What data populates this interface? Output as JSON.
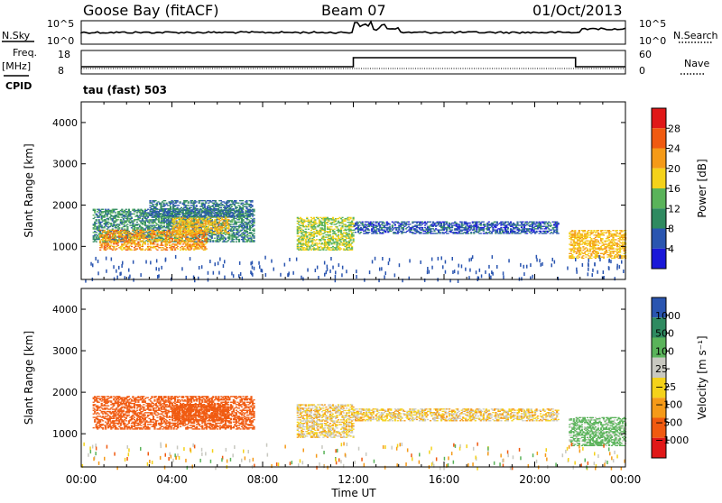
{
  "header": {
    "station": "Goose Bay (fitACF)",
    "beam": "Beam 07",
    "date": "01/Oct/2013"
  },
  "status_panels": {
    "nsky_label": "N.Sky",
    "nsky_top_tick": "10^5",
    "nsky_bottom_tick": "10^0",
    "nsearch_label": "N.Search",
    "nsearch_top_tick": "10^5",
    "nsearch_bottom_tick": "10^0",
    "freq_label": "Freq.",
    "freq_unit": "[MHz]",
    "freq_top_tick": "18",
    "freq_bottom_tick": "8",
    "nave_label": "Nave",
    "nave_top_tick": "60",
    "nave_bottom_tick": "0",
    "cpid_label": "CPID",
    "cpid_text": "tau (fast) 503"
  },
  "colors": {
    "power_scale": [
      "#1a18d8",
      "#2a55b0",
      "#2f8a60",
      "#5ab35a",
      "#f4d21a",
      "#f59a18",
      "#f05a10",
      "#e01818"
    ],
    "velocity_scale": [
      "#e01818",
      "#f05a10",
      "#f59a18",
      "#f4d21a",
      "#c8c8c0",
      "#5ab35a",
      "#2f8a60",
      "#2a55b0"
    ]
  },
  "chart_data": [
    {
      "type": "heatmap",
      "name": "power",
      "ylabel": "Slant Range [km]",
      "xlabel": "Time UT",
      "x_ticks": [
        "00:00",
        "04:00",
        "08:00",
        "12:00",
        "16:00",
        "20:00",
        "00:00"
      ],
      "y_ticks": [
        "1000",
        "2000",
        "3000",
        "4000"
      ],
      "ylim": [
        200,
        4500
      ],
      "colorbar_label": "Power [dB]",
      "colorbar_ticks": [
        "4",
        "8",
        "12",
        "16",
        "20",
        "24",
        "28"
      ],
      "regions": [
        {
          "t0": 0.5,
          "t1": 7.6,
          "r0": 1100,
          "r1": 1900,
          "value": 10
        },
        {
          "t0": 0.8,
          "t1": 5.5,
          "r0": 900,
          "r1": 1400,
          "value": 22
        },
        {
          "t0": 4.0,
          "t1": 6.5,
          "r0": 1300,
          "r1": 1700,
          "value": 20
        },
        {
          "t0": 9.5,
          "t1": 12.0,
          "r0": 900,
          "r1": 1700,
          "value": 16
        },
        {
          "t0": 12.0,
          "t1": 21.0,
          "r0": 1300,
          "r1": 1600,
          "value": 6
        },
        {
          "t0": 21.5,
          "t1": 24.0,
          "r0": 700,
          "r1": 1400,
          "value": 20
        },
        {
          "t0": 3.0,
          "t1": 7.5,
          "r0": 1700,
          "r1": 2100,
          "value": 8
        }
      ]
    },
    {
      "type": "heatmap",
      "name": "velocity",
      "ylabel": "Slant Range [km]",
      "xlabel": "Time UT",
      "x_ticks": [
        "00:00",
        "04:00",
        "08:00",
        "12:00",
        "16:00",
        "20:00",
        "00:00"
      ],
      "y_ticks": [
        "1000",
        "2000",
        "3000",
        "4000"
      ],
      "ylim": [
        200,
        4500
      ],
      "colorbar_label": "Velocity [m s⁻¹]",
      "colorbar_ticks": [
        "1000",
        "500",
        "100",
        "25",
        "−25",
        "−100",
        "−500",
        "−1000"
      ],
      "regions": [
        {
          "t0": 0.5,
          "t1": 7.6,
          "r0": 1100,
          "r1": 1900,
          "value": -200
        },
        {
          "t0": 4.0,
          "t1": 6.5,
          "r0": 1300,
          "r1": 1700,
          "value": -300
        },
        {
          "t0": 9.5,
          "t1": 12.0,
          "r0": 900,
          "r1": 1700,
          "value": 10
        },
        {
          "t0": 12.0,
          "t1": 21.0,
          "r0": 1300,
          "r1": 1600,
          "value": 5
        },
        {
          "t0": 21.5,
          "t1": 24.0,
          "r0": 700,
          "r1": 1400,
          "value": 150
        }
      ]
    }
  ]
}
